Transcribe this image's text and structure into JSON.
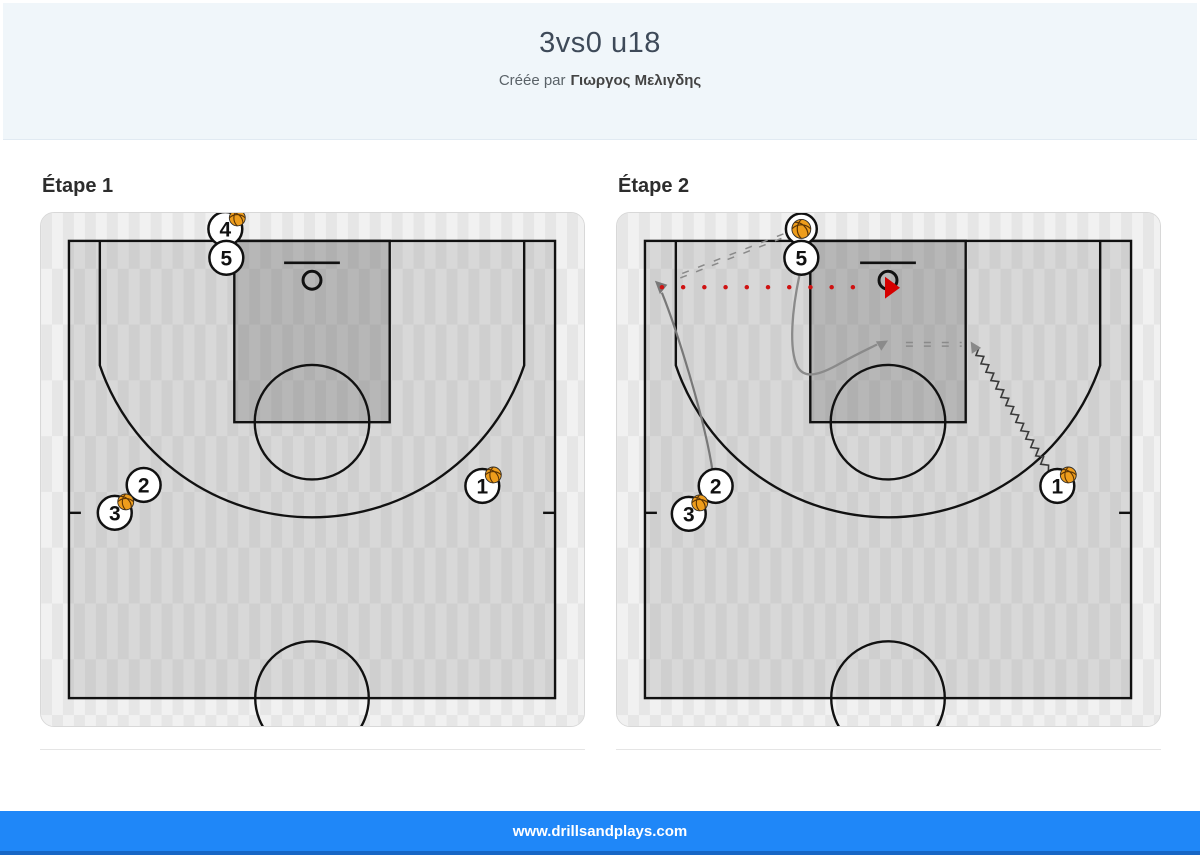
{
  "header": {
    "title": "3vs0 u18",
    "byline_prefix": "Créée par",
    "author": "Γιωργος Μελιγδης"
  },
  "steps": [
    {
      "label": "Étape 1",
      "players": [
        {
          "label": "4",
          "has_ball": true,
          "position": "top out-of-bounds, left of paint"
        },
        {
          "label": "5",
          "has_ball": false,
          "position": "left of paint at baseline"
        },
        {
          "label": "2",
          "has_ball": false,
          "position": "left wing inside arc"
        },
        {
          "label": "3",
          "has_ball": true,
          "position": "left sideline at hash"
        },
        {
          "label": "1",
          "has_ball": true,
          "position": "right wing on arc"
        }
      ],
      "actions": []
    },
    {
      "label": "Étape 2",
      "ball_marker": "ball in circle at top out-of-bounds above player 5",
      "players": [
        {
          "label": "5",
          "has_ball": false,
          "position": "left of paint at baseline"
        },
        {
          "label": "2",
          "has_ball": false,
          "position": "left wing inside arc"
        },
        {
          "label": "3",
          "has_ball": true,
          "position": "left sideline at hash"
        },
        {
          "label": "1",
          "has_ball": true,
          "position": "right wing on arc"
        }
      ],
      "actions": [
        {
          "type": "cut",
          "player": "2",
          "to": "left corner near baseline"
        },
        {
          "type": "pass-dashed",
          "from": "ball at top",
          "to": "left corner"
        },
        {
          "type": "shot-dotted",
          "from": "left corner",
          "to": "basket",
          "color": "red"
        },
        {
          "type": "curl-cut",
          "player": "5",
          "to": "middle of paint"
        },
        {
          "type": "dribble-zigzag",
          "player": "1",
          "to": "right side of paint"
        },
        {
          "type": "pass-dashed",
          "from": "right side of paint",
          "to": "middle of paint"
        }
      ]
    }
  ],
  "footer": {
    "url": "www.drillsandplays.com"
  },
  "colors": {
    "accent_blue": "#1f87f8",
    "accent_blue_dark": "#1766c5",
    "header_bg": "#f0f6fa",
    "shot_red": "#d60000",
    "ball_orange": "#ee9d1c"
  }
}
